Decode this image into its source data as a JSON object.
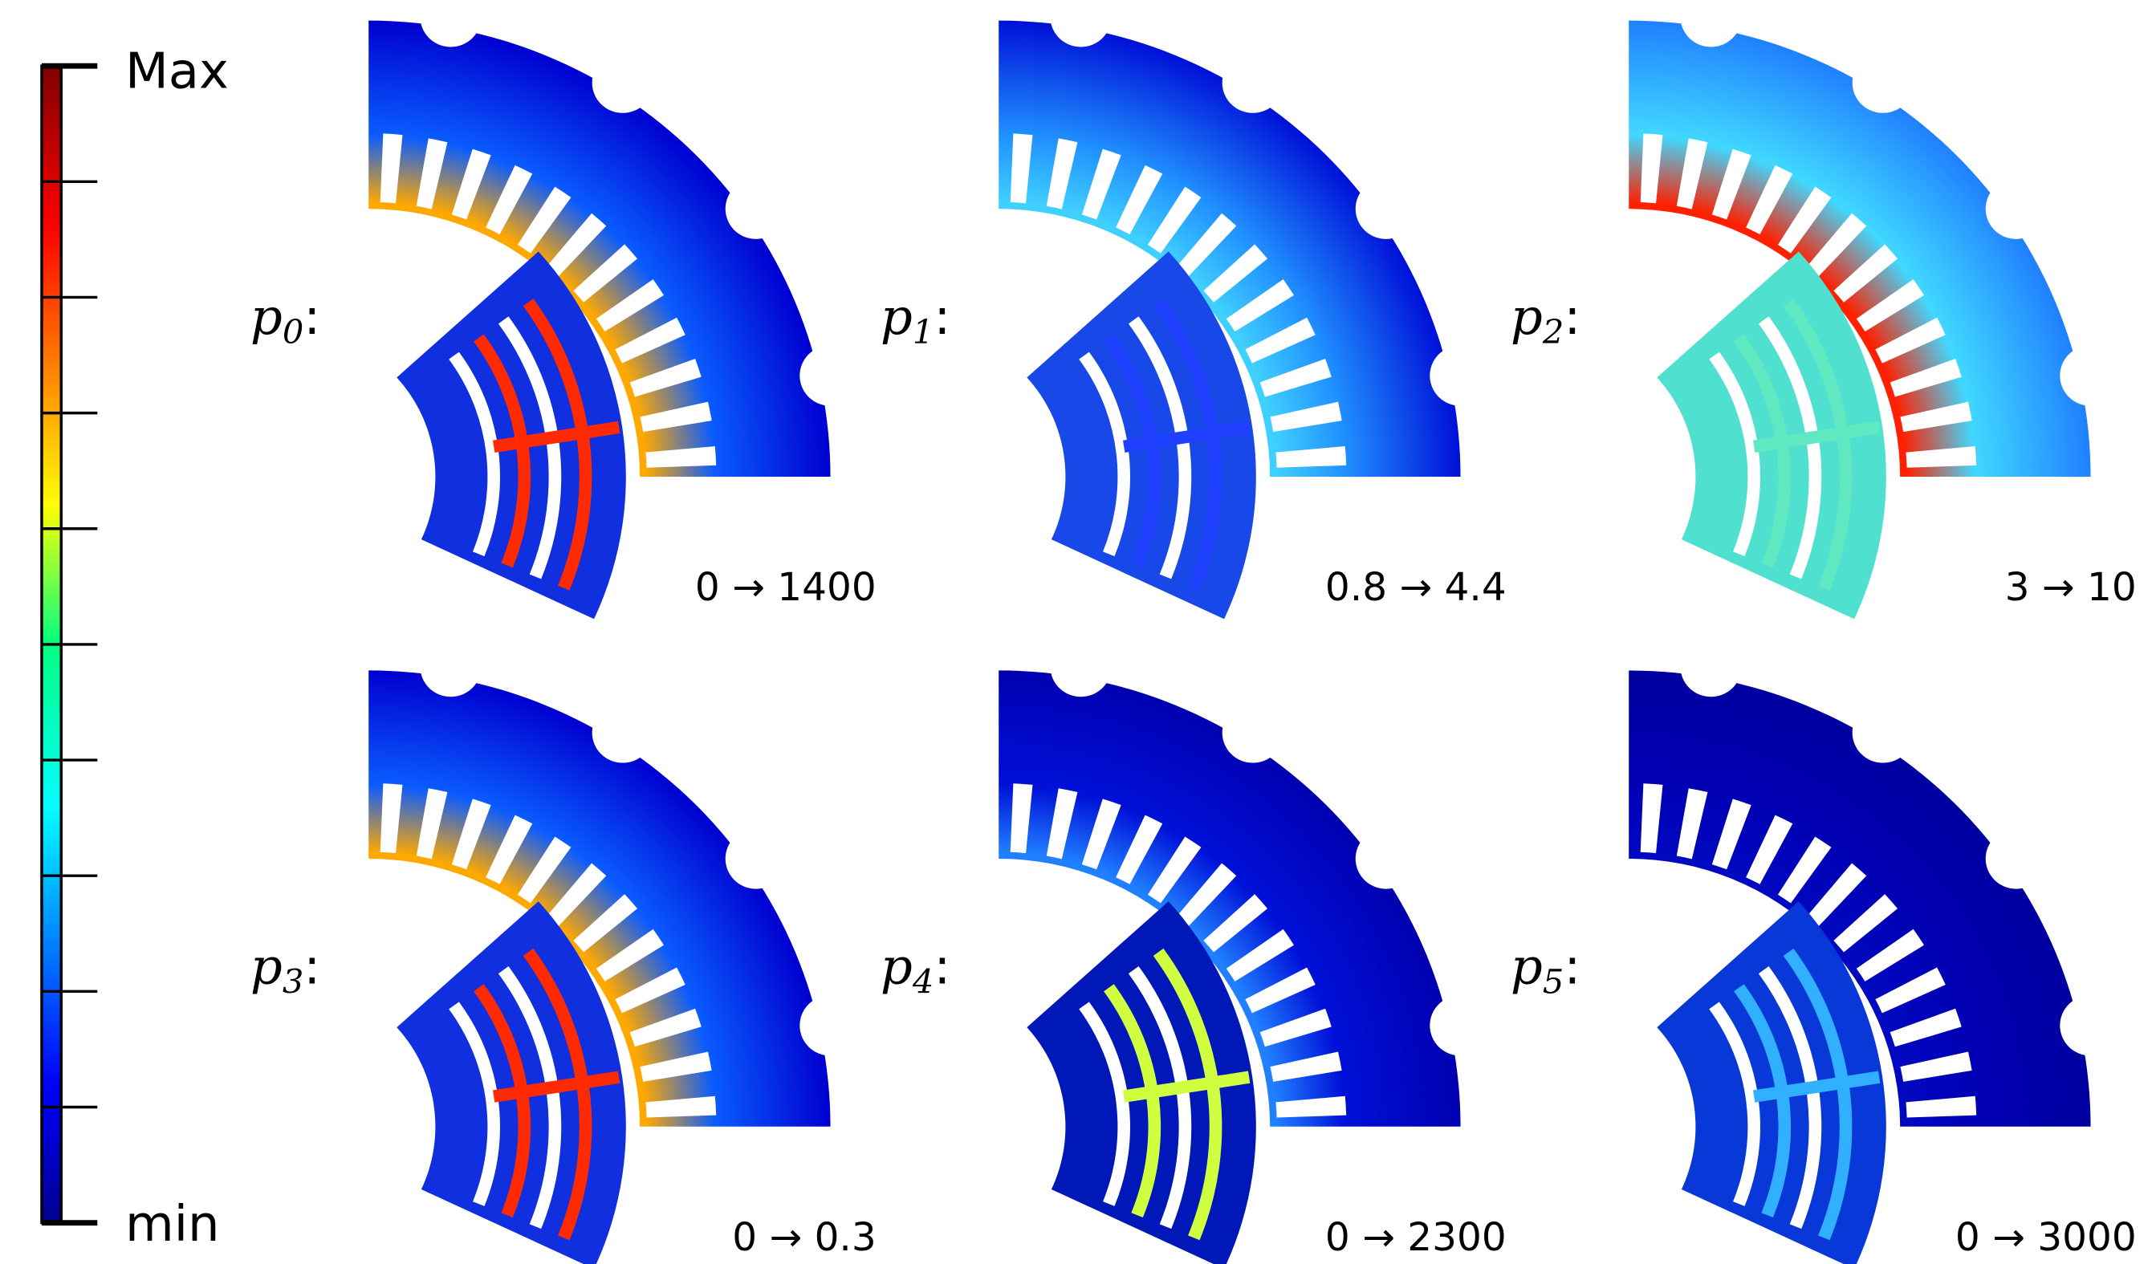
{
  "colorbar": {
    "max_label": "Max",
    "min_label": "min"
  },
  "panels": [
    {
      "label": {
        "base": "p",
        "subscript": "0",
        "punct": ":"
      },
      "range": "0 → 1400"
    },
    {
      "label": {
        "base": "p",
        "subscript": "1",
        "punct": ":"
      },
      "range": "0.8 → 4.4"
    },
    {
      "label": {
        "base": "p",
        "subscript": "2",
        "punct": ":"
      },
      "range": "3 → 10"
    },
    {
      "label": {
        "base": "p",
        "subscript": "3",
        "punct": ":"
      },
      "range": "0 → 0.3"
    },
    {
      "label": {
        "base": "p",
        "subscript": "4",
        "punct": ":"
      },
      "range": "0 → 2300"
    },
    {
      "label": {
        "base": "p",
        "subscript": "5",
        "punct": ":"
      },
      "range": "0 → 3000"
    }
  ]
}
